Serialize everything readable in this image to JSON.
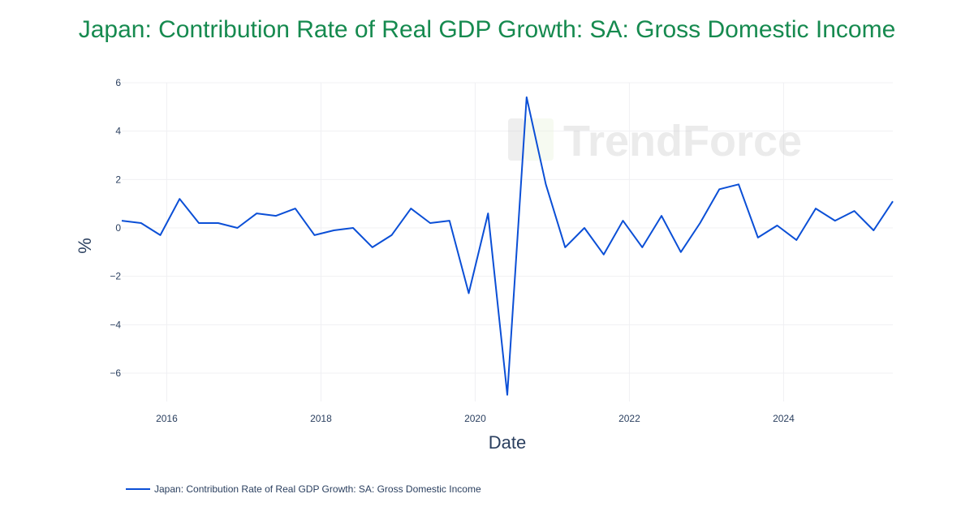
{
  "chart_data": {
    "type": "line",
    "title": "Japan: Contribution Rate of Real GDP Growth: SA: Gross Domestic Income",
    "xlabel": "Date",
    "ylabel": "%",
    "ylim": [
      -7.3,
      6
    ],
    "xlim": [
      "2015-06-01",
      "2025-06-01"
    ],
    "y_ticks": [
      6,
      4,
      2,
      0,
      -2,
      -4,
      -6
    ],
    "y_tick_labels": [
      "6",
      "4",
      "2",
      "0",
      "−2",
      "−4",
      "−6"
    ],
    "x_ticks": [
      "2016",
      "2018",
      "2020",
      "2022",
      "2024"
    ],
    "grid": true,
    "legend_position": "bottom-left",
    "watermark": "TrendForce",
    "series": [
      {
        "name": "Japan: Contribution Rate of Real GDP Growth: SA: Gross Domestic Income",
        "color": "#0b4fd6",
        "x": [
          "2015-06-01",
          "2015-09-01",
          "2015-12-01",
          "2016-03-01",
          "2016-06-01",
          "2016-09-01",
          "2016-12-01",
          "2017-03-01",
          "2017-06-01",
          "2017-09-01",
          "2017-12-01",
          "2018-03-01",
          "2018-06-01",
          "2018-09-01",
          "2018-12-01",
          "2019-03-01",
          "2019-06-01",
          "2019-09-01",
          "2019-12-01",
          "2020-03-01",
          "2020-06-01",
          "2020-09-01",
          "2020-12-01",
          "2021-03-01",
          "2021-06-01",
          "2021-09-01",
          "2021-12-01",
          "2022-03-01",
          "2022-06-01",
          "2022-09-01",
          "2022-12-01",
          "2023-03-01",
          "2023-06-01",
          "2023-09-01",
          "2023-12-01",
          "2024-03-01",
          "2024-06-01",
          "2024-09-01",
          "2024-12-01",
          "2025-03-01",
          "2025-06-01"
        ],
        "values": [
          0.3,
          0.2,
          -0.3,
          1.2,
          0.2,
          0.2,
          0.0,
          0.6,
          0.5,
          0.8,
          -0.3,
          -0.1,
          0.0,
          -0.8,
          -0.3,
          0.8,
          0.2,
          0.3,
          -2.7,
          0.6,
          -6.9,
          5.4,
          1.8,
          -0.8,
          0.0,
          -1.1,
          0.3,
          -0.8,
          0.5,
          -1.0,
          0.2,
          1.6,
          1.8,
          -0.4,
          0.1,
          -0.5,
          0.8,
          0.3,
          0.7,
          -0.1,
          1.1
        ]
      }
    ]
  }
}
